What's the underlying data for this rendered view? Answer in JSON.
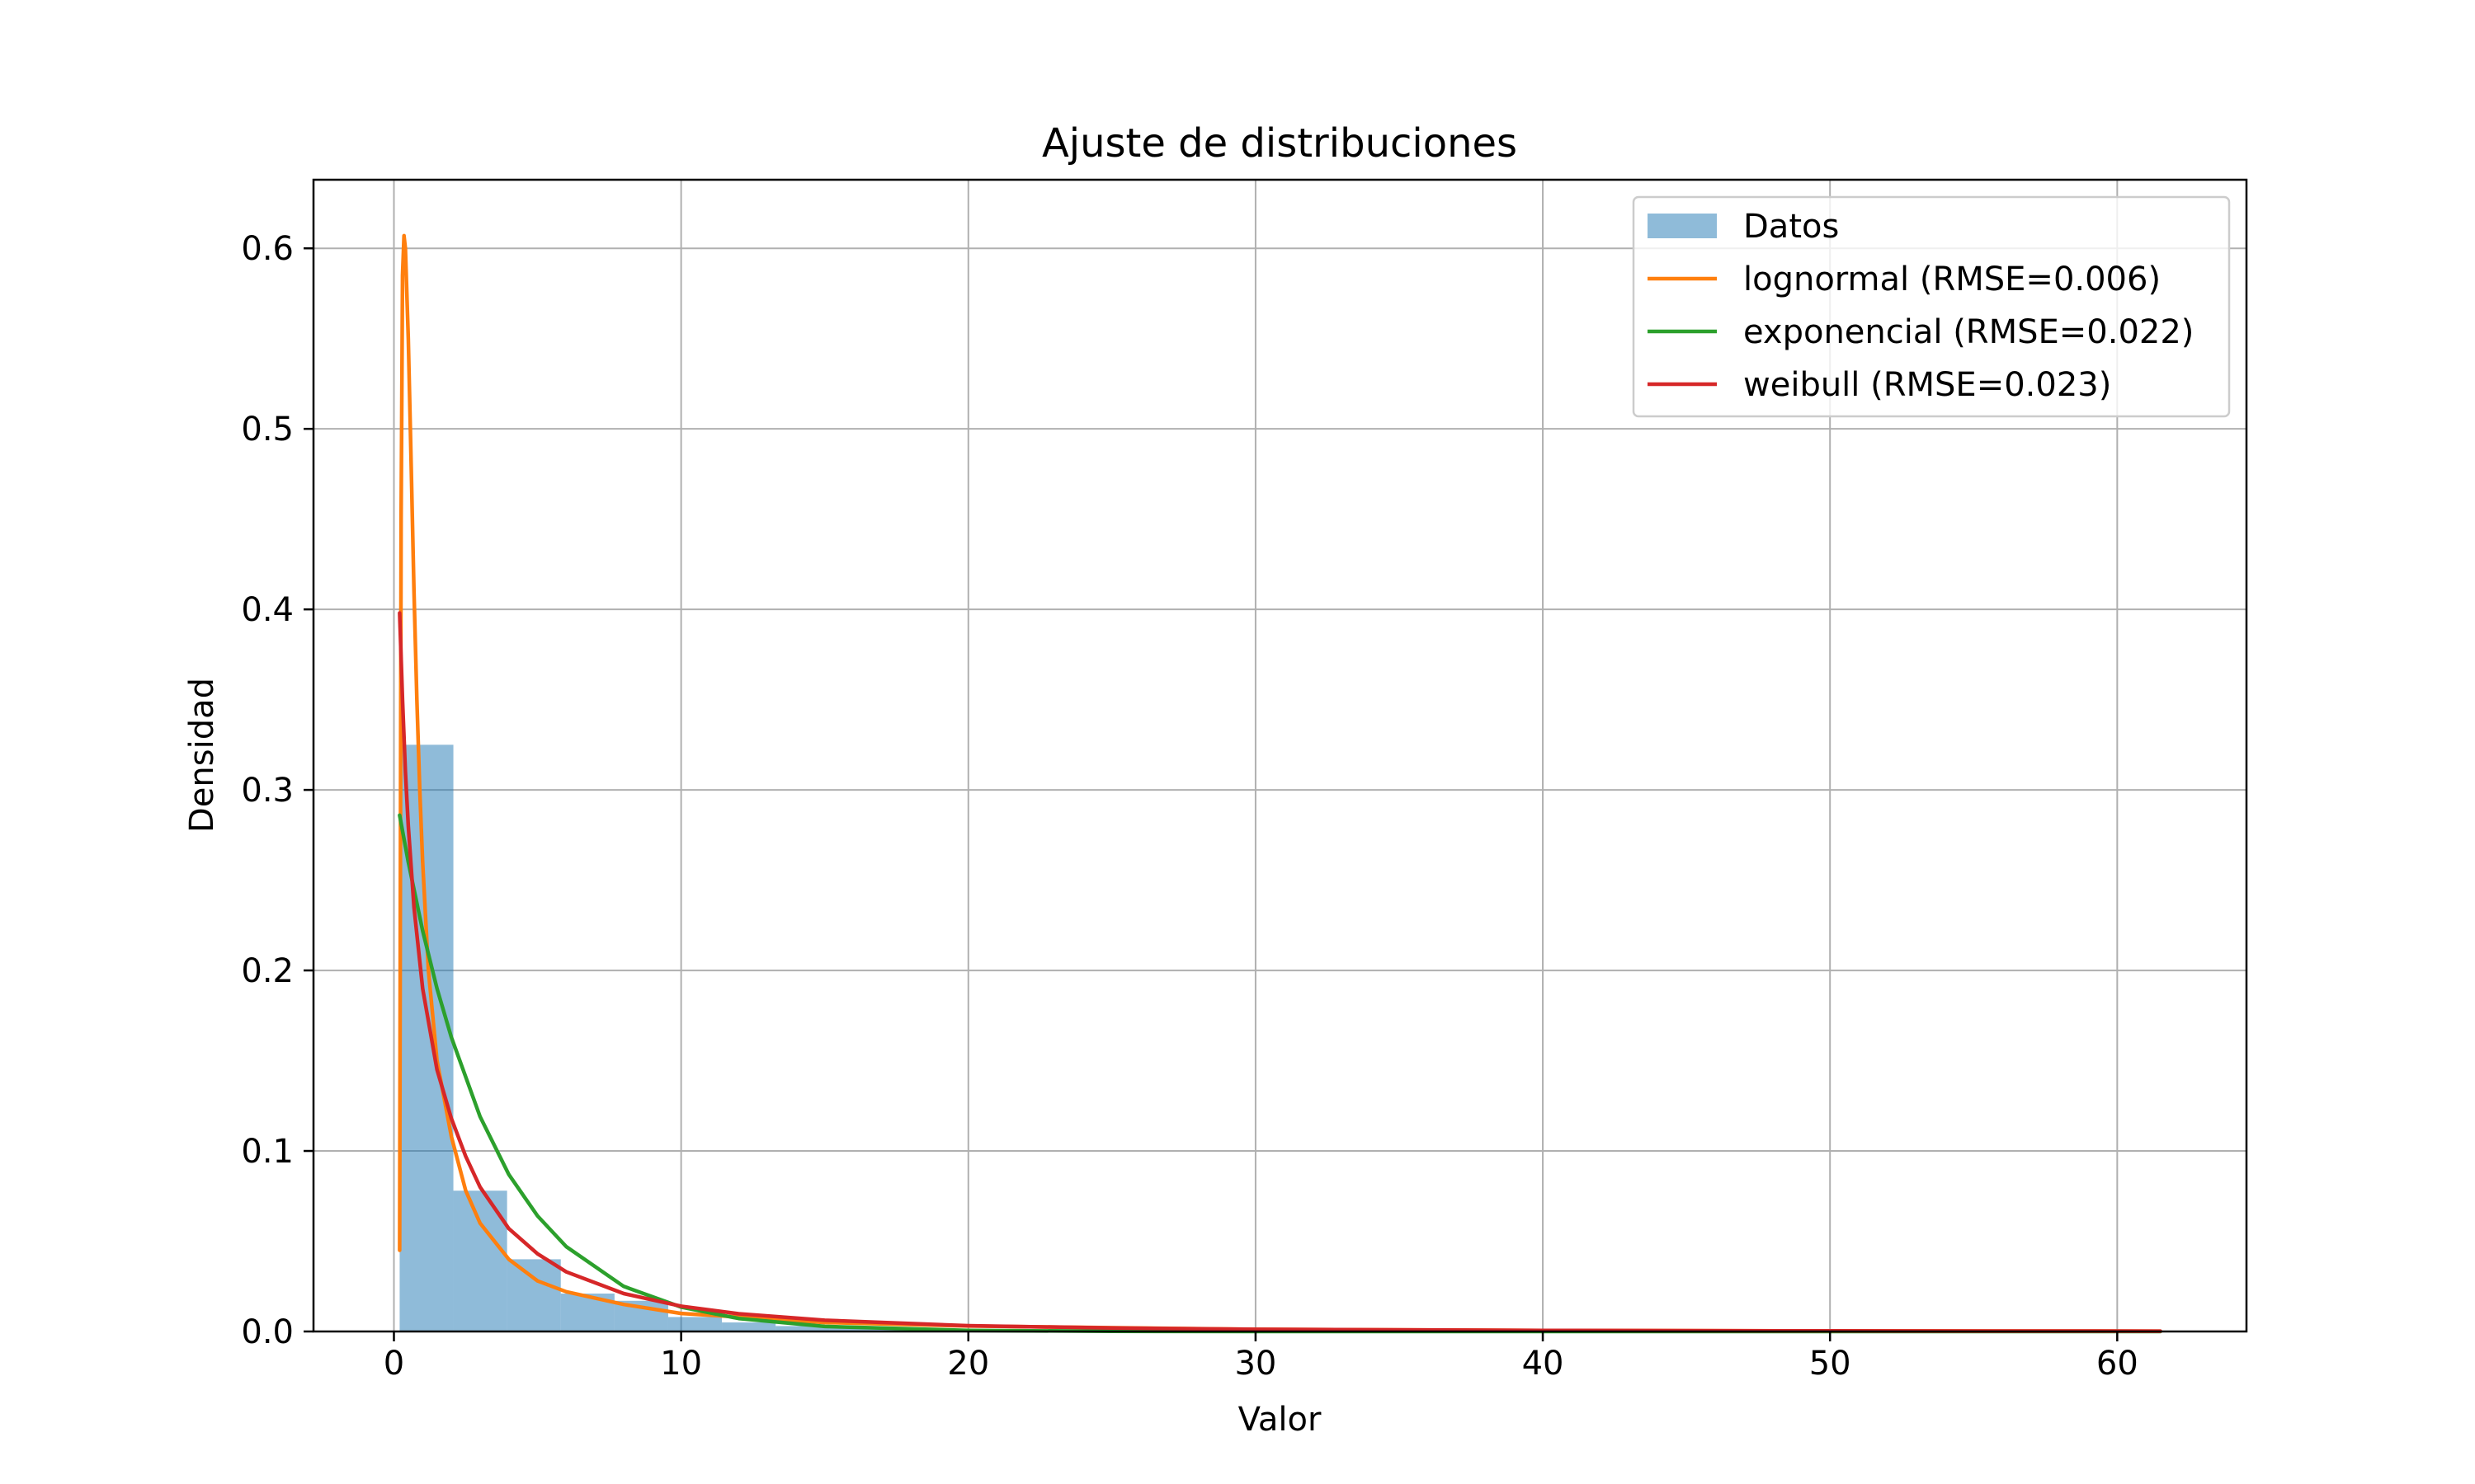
{
  "chart_data": {
    "type": "histogram",
    "title": "Ajuste de distribuciones",
    "xlabel": "Valor",
    "ylabel": "Densidad",
    "xlim": [
      -2.8,
      64.5
    ],
    "ylim": [
      0,
      0.638
    ],
    "xticks": [
      0,
      10,
      20,
      30,
      40,
      50,
      60
    ],
    "yticks": [
      0.0,
      0.1,
      0.2,
      0.3,
      0.4,
      0.5,
      0.6
    ],
    "xtick_labels": [
      "0",
      "10",
      "20",
      "30",
      "40",
      "50",
      "60"
    ],
    "ytick_labels": [
      "0.0",
      "0.1",
      "0.2",
      "0.3",
      "0.4",
      "0.5",
      "0.6"
    ],
    "grid": true,
    "legend_position": "top-right",
    "histogram": {
      "name": "Datos",
      "color": "#1f77b4",
      "opacity": 0.5,
      "bin_edges": [
        0.2,
        2.07,
        3.94,
        5.81,
        7.68,
        9.55,
        11.42,
        13.29,
        15.16,
        17.03,
        18.9,
        20.77,
        22.64,
        24.51,
        26.38,
        28.25,
        30.12,
        31.99,
        33.86,
        35.73,
        37.6,
        39.47,
        41.34,
        43.21,
        45.08,
        46.95,
        48.82,
        50.69,
        52.56,
        54.43,
        56.3,
        58.17,
        60.04,
        61.5
      ],
      "densities": [
        0.325,
        0.078,
        0.04,
        0.021,
        0.017,
        0.008,
        0.005,
        0.003,
        0.002,
        0.0015,
        0.001,
        0.001,
        0.0008,
        0.0006,
        0.0005,
        0.0004,
        0.0003,
        0.0003,
        0.0002,
        0.0002,
        0.0002,
        0.0001,
        0.0001,
        0.0001,
        0.0001,
        0.0001,
        0.0001,
        0.0001,
        0.0001,
        0.0001,
        0.0001,
        0.0001,
        0.0001
      ]
    },
    "series": [
      {
        "name": "lognormal (RMSE=0.006)",
        "color": "#ff7f0e",
        "x": [
          0.2,
          0.25,
          0.3,
          0.35,
          0.4,
          0.5,
          0.6,
          0.7,
          0.8,
          0.9,
          1.0,
          1.2,
          1.5,
          2.0,
          2.5,
          3.0,
          4.0,
          5.0,
          6.0,
          8.0,
          10.0,
          12.0,
          15.0,
          20.0,
          30.0,
          40.0,
          50.0,
          61.5
        ],
        "y": [
          0.045,
          0.45,
          0.585,
          0.607,
          0.6,
          0.55,
          0.48,
          0.41,
          0.35,
          0.3,
          0.26,
          0.2,
          0.15,
          0.108,
          0.078,
          0.06,
          0.04,
          0.028,
          0.022,
          0.015,
          0.01,
          0.008,
          0.005,
          0.003,
          0.0012,
          0.0006,
          0.0003,
          0.0002
        ]
      },
      {
        "name": "exponencial (RMSE=0.022)",
        "color": "#2ca02c",
        "x": [
          0.2,
          0.5,
          1.0,
          1.5,
          2.0,
          3.0,
          4.0,
          5.0,
          6.0,
          8.0,
          10.0,
          12.0,
          15.0,
          20.0,
          25.0,
          30.0,
          40.0,
          50.0,
          61.5
        ],
        "y": [
          0.286,
          0.26,
          0.222,
          0.19,
          0.163,
          0.119,
          0.087,
          0.064,
          0.047,
          0.025,
          0.0135,
          0.0072,
          0.0028,
          0.0006,
          0.0001,
          0.0,
          0.0,
          0.0,
          0.0
        ]
      },
      {
        "name": "weibull (RMSE=0.023)",
        "color": "#d62728",
        "x": [
          0.2,
          0.3,
          0.4,
          0.5,
          0.7,
          1.0,
          1.5,
          2.0,
          2.5,
          3.0,
          4.0,
          5.0,
          6.0,
          8.0,
          10.0,
          12.0,
          15.0,
          20.0,
          25.0,
          30.0,
          40.0,
          50.0,
          61.5
        ],
        "y": [
          0.398,
          0.35,
          0.31,
          0.28,
          0.235,
          0.19,
          0.145,
          0.118,
          0.097,
          0.08,
          0.057,
          0.043,
          0.033,
          0.021,
          0.014,
          0.0098,
          0.0062,
          0.0032,
          0.0019,
          0.0012,
          0.0006,
          0.0003,
          0.0002
        ]
      }
    ]
  }
}
